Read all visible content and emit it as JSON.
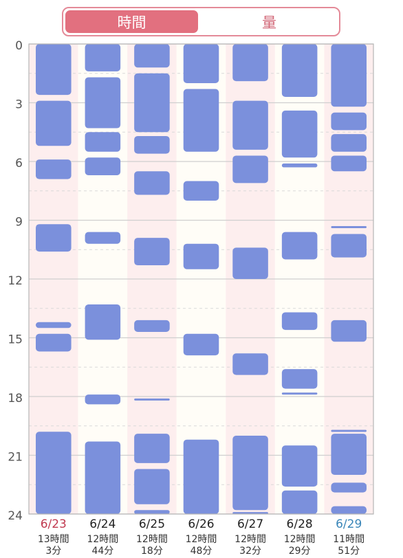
{
  "toggle": {
    "time_label": "時間",
    "amount_label": "量",
    "selected": "時間"
  },
  "colors": {
    "bar": "#7b90dc",
    "weekend_column": "#fdeeee",
    "weekday_column": "#fffdf7",
    "saturday_label": "#c0394f",
    "sunday_label": "#3a86b8",
    "toggle_accent": "#e2707f"
  },
  "chart_data": {
    "type": "timeline",
    "y_axis": {
      "ticks": [
        0,
        3,
        6,
        9,
        12,
        15,
        18,
        21,
        24
      ],
      "range": [
        0,
        24
      ],
      "unit": "hour",
      "reversed": true
    },
    "grid": true,
    "days": [
      {
        "date": "6/23",
        "total_line1": "13時間",
        "total_line2": "3分",
        "weekend": "sat",
        "sleeps": [
          [
            0,
            2.6
          ],
          [
            2.9,
            5.2
          ],
          [
            5.9,
            6.9
          ],
          [
            9.2,
            10.6
          ],
          [
            14.2,
            14.5
          ],
          [
            14.8,
            15.7
          ],
          [
            19.8,
            24
          ]
        ]
      },
      {
        "date": "6/24",
        "total_line1": "12時間",
        "total_line2": "44分",
        "weekend": "",
        "sleeps": [
          [
            0,
            1.4
          ],
          [
            1.7,
            4.3
          ],
          [
            4.5,
            5.5
          ],
          [
            5.8,
            6.7
          ],
          [
            9.6,
            10.2
          ],
          [
            13.3,
            15.1
          ],
          [
            17.9,
            18.4
          ],
          [
            20.3,
            24
          ]
        ]
      },
      {
        "date": "6/25",
        "total_line1": "12時間",
        "total_line2": "18分",
        "weekend": "",
        "sleeps": [
          [
            0,
            1.2
          ],
          [
            1.5,
            4.5
          ],
          [
            4.7,
            5.6
          ],
          [
            6.5,
            7.7
          ],
          [
            9.9,
            11.3
          ],
          [
            14.1,
            14.7
          ],
          [
            18.1,
            18.2
          ],
          [
            19.9,
            21.4
          ],
          [
            21.7,
            23.5
          ],
          [
            23.8,
            24
          ]
        ]
      },
      {
        "date": "6/26",
        "total_line1": "12時間",
        "total_line2": "48分",
        "weekend": "",
        "sleeps": [
          [
            0,
            2.0
          ],
          [
            2.3,
            5.5
          ],
          [
            7.0,
            8.0
          ],
          [
            10.2,
            11.5
          ],
          [
            14.8,
            15.9
          ],
          [
            20.2,
            24
          ]
        ]
      },
      {
        "date": "6/27",
        "total_line1": "12時間",
        "total_line2": "32分",
        "weekend": "",
        "sleeps": [
          [
            0,
            1.9
          ],
          [
            2.9,
            5.4
          ],
          [
            5.7,
            7.1
          ],
          [
            10.4,
            12.0
          ],
          [
            15.8,
            16.9
          ],
          [
            20.0,
            23.8
          ],
          [
            23.9,
            24
          ]
        ]
      },
      {
        "date": "6/28",
        "total_line1": "12時間",
        "total_line2": "29分",
        "weekend": "",
        "sleeps": [
          [
            0,
            2.7
          ],
          [
            3.4,
            5.8
          ],
          [
            6.1,
            6.3
          ],
          [
            9.6,
            11.0
          ],
          [
            13.7,
            14.6
          ],
          [
            16.6,
            17.6
          ],
          [
            17.8,
            17.9
          ],
          [
            20.5,
            22.6
          ],
          [
            22.8,
            24
          ]
        ]
      },
      {
        "date": "6/29",
        "total_line1": "11時間",
        "total_line2": "51分",
        "weekend": "sun",
        "sleeps": [
          [
            0,
            3.2
          ],
          [
            3.5,
            4.4
          ],
          [
            4.6,
            5.5
          ],
          [
            5.7,
            6.5
          ],
          [
            9.3,
            9.4
          ],
          [
            9.7,
            10.9
          ],
          [
            14.1,
            15.2
          ],
          [
            19.7,
            19.8
          ],
          [
            19.9,
            22.0
          ],
          [
            22.4,
            22.9
          ],
          [
            23.6,
            24
          ]
        ]
      }
    ]
  }
}
